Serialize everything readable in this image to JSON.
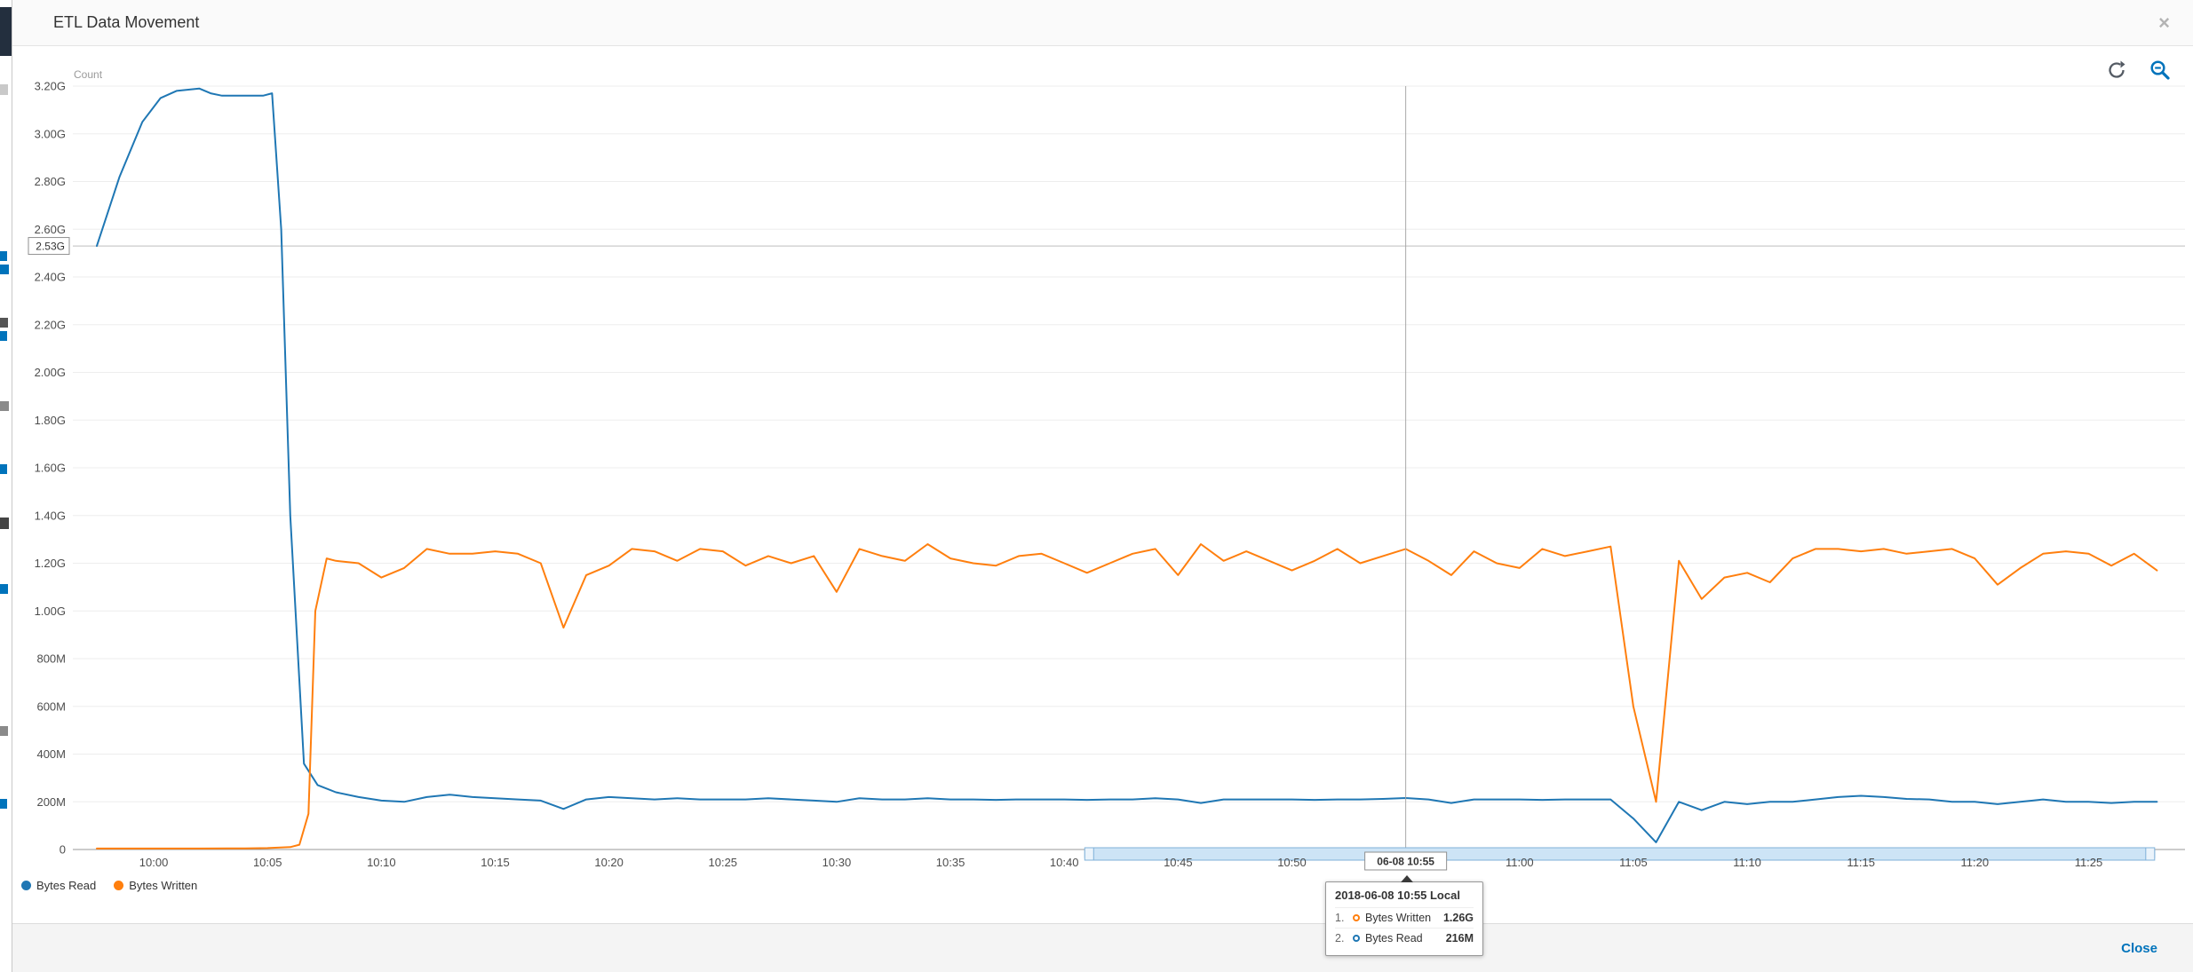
{
  "colors": {
    "accent_blue": "#0073bb",
    "series_read": "#1f77b4",
    "series_written": "#ff7f0e",
    "header_bg": "#fafafa",
    "footer_bg": "#f4f4f4"
  },
  "modal": {
    "title": "ETL Data Movement",
    "close_icon": "×",
    "footer": {
      "close_label": "Close"
    }
  },
  "toolbar": {
    "refresh_icon": "refresh",
    "zoom_out_icon": "zoom-out"
  },
  "legend": {
    "items": [
      {
        "label": "Bytes Read",
        "color": "#1f77b4"
      },
      {
        "label": "Bytes Written",
        "color": "#ff7f0e"
      }
    ]
  },
  "tooltip": {
    "header": "2018-06-08 10:55 Local",
    "rows": [
      {
        "index": "1.",
        "label": "Bytes Written",
        "value": "1.26G",
        "color": "#ff7f0e"
      },
      {
        "index": "2.",
        "label": "Bytes Read",
        "value": "216M",
        "color": "#1f77b4"
      }
    ]
  },
  "chart_data": {
    "type": "line",
    "title": "ETL Data Movement",
    "ylabel": "Count",
    "y_unit": "bytes (G, M)",
    "ylim": [
      0,
      3.2
    ],
    "grid": "horizontal",
    "legend_position": "bottom-left",
    "x_domain_minutes_from_1000": [
      -2.5,
      89
    ],
    "y_ticks": [
      {
        "value": 0,
        "label": "0"
      },
      {
        "value": 0.2,
        "label": "200M"
      },
      {
        "value": 0.4,
        "label": "400M"
      },
      {
        "value": 0.6,
        "label": "600M"
      },
      {
        "value": 0.8,
        "label": "800M"
      },
      {
        "value": 1.0,
        "label": "1.00G"
      },
      {
        "value": 1.2,
        "label": "1.20G"
      },
      {
        "value": 1.4,
        "label": "1.40G"
      },
      {
        "value": 1.6,
        "label": "1.60G"
      },
      {
        "value": 1.8,
        "label": "1.80G"
      },
      {
        "value": 2.0,
        "label": "2.00G"
      },
      {
        "value": 2.2,
        "label": "2.20G"
      },
      {
        "value": 2.4,
        "label": "2.40G"
      },
      {
        "value": 2.6,
        "label": "2.60G"
      },
      {
        "value": 2.8,
        "label": "2.80G"
      },
      {
        "value": 3.0,
        "label": "3.00G"
      },
      {
        "value": 3.2,
        "label": "3.20G"
      }
    ],
    "x_ticks": [
      {
        "t": 0,
        "label": "10:00"
      },
      {
        "t": 5,
        "label": "10:05"
      },
      {
        "t": 10,
        "label": "10:10"
      },
      {
        "t": 15,
        "label": "10:15"
      },
      {
        "t": 20,
        "label": "10:20"
      },
      {
        "t": 25,
        "label": "10:25"
      },
      {
        "t": 30,
        "label": "10:30"
      },
      {
        "t": 35,
        "label": "10:35"
      },
      {
        "t": 40,
        "label": "10:40"
      },
      {
        "t": 45,
        "label": "10:45"
      },
      {
        "t": 50,
        "label": "10:50"
      },
      {
        "t": 55,
        "label": "06-08 10:55",
        "boxed": true
      },
      {
        "t": 60,
        "label": "11:00"
      },
      {
        "t": 65,
        "label": "11:05"
      },
      {
        "t": 70,
        "label": "11:10"
      },
      {
        "t": 75,
        "label": "11:15"
      },
      {
        "t": 80,
        "label": "11:20"
      },
      {
        "t": 85,
        "label": "11:25"
      }
    ],
    "annotation_line": {
      "value": 2.53,
      "label": "2.53G"
    },
    "crosshair_minute": 55,
    "selected_point": {
      "time": "2018-06-08 10:55 Local",
      "bytes_written": "1.26G",
      "bytes_read": "216M"
    },
    "scrollbar": {
      "t_start": 40.9,
      "t_end": 87.9
    },
    "series": [
      {
        "name": "Bytes Read",
        "color": "#1f77b4",
        "unit": "G",
        "points": [
          [
            -2.5,
            2.53
          ],
          [
            -1.5,
            2.82
          ],
          [
            -0.5,
            3.05
          ],
          [
            0.3,
            3.15
          ],
          [
            1,
            3.18
          ],
          [
            2,
            3.19
          ],
          [
            2.5,
            3.17
          ],
          [
            3,
            3.16
          ],
          [
            4,
            3.16
          ],
          [
            4.8,
            3.16
          ],
          [
            5.2,
            3.17
          ],
          [
            5.6,
            2.6
          ],
          [
            6.0,
            1.4
          ],
          [
            6.6,
            0.36
          ],
          [
            7.2,
            0.27
          ],
          [
            8,
            0.24
          ],
          [
            9,
            0.22
          ],
          [
            10,
            0.205
          ],
          [
            11,
            0.2
          ],
          [
            12,
            0.22
          ],
          [
            13,
            0.23
          ],
          [
            14,
            0.22
          ],
          [
            15,
            0.215
          ],
          [
            16,
            0.21
          ],
          [
            17,
            0.205
          ],
          [
            18,
            0.17
          ],
          [
            19,
            0.21
          ],
          [
            20,
            0.22
          ],
          [
            21,
            0.215
          ],
          [
            22,
            0.21
          ],
          [
            23,
            0.215
          ],
          [
            24,
            0.21
          ],
          [
            25,
            0.21
          ],
          [
            26,
            0.21
          ],
          [
            27,
            0.215
          ],
          [
            28,
            0.21
          ],
          [
            29,
            0.205
          ],
          [
            30,
            0.2
          ],
          [
            31,
            0.215
          ],
          [
            32,
            0.21
          ],
          [
            33,
            0.21
          ],
          [
            34,
            0.215
          ],
          [
            35,
            0.21
          ],
          [
            36,
            0.21
          ],
          [
            37,
            0.208
          ],
          [
            38,
            0.21
          ],
          [
            39,
            0.21
          ],
          [
            40,
            0.21
          ],
          [
            41,
            0.208
          ],
          [
            42,
            0.21
          ],
          [
            43,
            0.21
          ],
          [
            44,
            0.215
          ],
          [
            45,
            0.21
          ],
          [
            46,
            0.195
          ],
          [
            47,
            0.21
          ],
          [
            48,
            0.21
          ],
          [
            49,
            0.21
          ],
          [
            50,
            0.21
          ],
          [
            51,
            0.208
          ],
          [
            52,
            0.21
          ],
          [
            53,
            0.21
          ],
          [
            54,
            0.212
          ],
          [
            55,
            0.216
          ],
          [
            56,
            0.21
          ],
          [
            57,
            0.195
          ],
          [
            58,
            0.21
          ],
          [
            59,
            0.21
          ],
          [
            60,
            0.21
          ],
          [
            61,
            0.208
          ],
          [
            62,
            0.21
          ],
          [
            63,
            0.21
          ],
          [
            64,
            0.21
          ],
          [
            65,
            0.13
          ],
          [
            66,
            0.03
          ],
          [
            67,
            0.2
          ],
          [
            68,
            0.165
          ],
          [
            69,
            0.2
          ],
          [
            70,
            0.19
          ],
          [
            71,
            0.2
          ],
          [
            72,
            0.2
          ],
          [
            73,
            0.21
          ],
          [
            74,
            0.22
          ],
          [
            75,
            0.225
          ],
          [
            76,
            0.22
          ],
          [
            77,
            0.212
          ],
          [
            78,
            0.21
          ],
          [
            79,
            0.2
          ],
          [
            80,
            0.2
          ],
          [
            81,
            0.19
          ],
          [
            82,
            0.2
          ],
          [
            83,
            0.21
          ],
          [
            84,
            0.2
          ],
          [
            85,
            0.2
          ],
          [
            86,
            0.195
          ],
          [
            87,
            0.2
          ],
          [
            88,
            0.2
          ]
        ]
      },
      {
        "name": "Bytes Written",
        "color": "#ff7f0e",
        "unit": "G",
        "points": [
          [
            -2.5,
            0.004
          ],
          [
            0,
            0.004
          ],
          [
            2,
            0.004
          ],
          [
            4,
            0.005
          ],
          [
            5,
            0.006
          ],
          [
            6,
            0.01
          ],
          [
            6.4,
            0.02
          ],
          [
            6.8,
            0.15
          ],
          [
            7.1,
            1.0
          ],
          [
            7.6,
            1.22
          ],
          [
            8,
            1.21
          ],
          [
            9,
            1.2
          ],
          [
            10,
            1.14
          ],
          [
            11,
            1.18
          ],
          [
            12,
            1.26
          ],
          [
            13,
            1.24
          ],
          [
            14,
            1.24
          ],
          [
            15,
            1.25
          ],
          [
            16,
            1.24
          ],
          [
            17,
            1.2
          ],
          [
            18,
            0.93
          ],
          [
            19,
            1.15
          ],
          [
            20,
            1.19
          ],
          [
            21,
            1.26
          ],
          [
            22,
            1.25
          ],
          [
            23,
            1.21
          ],
          [
            24,
            1.26
          ],
          [
            25,
            1.25
          ],
          [
            26,
            1.19
          ],
          [
            27,
            1.23
          ],
          [
            28,
            1.2
          ],
          [
            29,
            1.23
          ],
          [
            30,
            1.08
          ],
          [
            31,
            1.26
          ],
          [
            32,
            1.23
          ],
          [
            33,
            1.21
          ],
          [
            34,
            1.28
          ],
          [
            35,
            1.22
          ],
          [
            36,
            1.2
          ],
          [
            37,
            1.19
          ],
          [
            38,
            1.23
          ],
          [
            39,
            1.24
          ],
          [
            40,
            1.2
          ],
          [
            41,
            1.16
          ],
          [
            42,
            1.2
          ],
          [
            43,
            1.24
          ],
          [
            44,
            1.26
          ],
          [
            45,
            1.15
          ],
          [
            46,
            1.28
          ],
          [
            47,
            1.21
          ],
          [
            48,
            1.25
          ],
          [
            49,
            1.21
          ],
          [
            50,
            1.17
          ],
          [
            51,
            1.21
          ],
          [
            52,
            1.26
          ],
          [
            53,
            1.2
          ],
          [
            54,
            1.23
          ],
          [
            55,
            1.26
          ],
          [
            56,
            1.21
          ],
          [
            57,
            1.15
          ],
          [
            58,
            1.25
          ],
          [
            59,
            1.2
          ],
          [
            60,
            1.18
          ],
          [
            61,
            1.26
          ],
          [
            62,
            1.23
          ],
          [
            63,
            1.25
          ],
          [
            64,
            1.27
          ],
          [
            65,
            0.6
          ],
          [
            66,
            0.2
          ],
          [
            67,
            1.21
          ],
          [
            68,
            1.05
          ],
          [
            69,
            1.14
          ],
          [
            70,
            1.16
          ],
          [
            71,
            1.12
          ],
          [
            72,
            1.22
          ],
          [
            73,
            1.26
          ],
          [
            74,
            1.26
          ],
          [
            75,
            1.25
          ],
          [
            76,
            1.26
          ],
          [
            77,
            1.24
          ],
          [
            78,
            1.25
          ],
          [
            79,
            1.26
          ],
          [
            80,
            1.22
          ],
          [
            81,
            1.11
          ],
          [
            82,
            1.18
          ],
          [
            83,
            1.24
          ],
          [
            84,
            1.25
          ],
          [
            85,
            1.24
          ],
          [
            86,
            1.19
          ],
          [
            87,
            1.24
          ],
          [
            88,
            1.17
          ]
        ]
      }
    ]
  }
}
